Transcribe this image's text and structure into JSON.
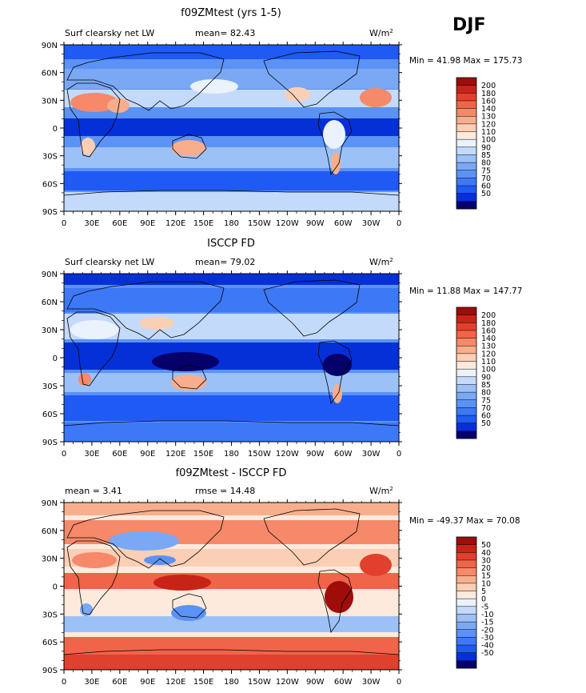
{
  "season": "DJF",
  "colors": {
    "abs_scale": [
      "#05006a",
      "#0530d8",
      "#1f5af5",
      "#3d78f7",
      "#5b92f5",
      "#7aa8f5",
      "#9cc1f7",
      "#c4dafa",
      "#eaf2fd",
      "#fdeadc",
      "#fbcfb5",
      "#f8ae8d",
      "#f5896a",
      "#f06449",
      "#e2402e",
      "#c82317",
      "#9e0d0a"
    ],
    "diff_scale": [
      "#05006a",
      "#0530d8",
      "#1f5af5",
      "#3d78f7",
      "#5b92f5",
      "#7aa8f5",
      "#9cc1f7",
      "#c4dafa",
      "#eaf2fd",
      "#fdeadc",
      "#fbcfb5",
      "#f8ae8d",
      "#f5896a",
      "#f06449",
      "#e2402e",
      "#c82317",
      "#9e0d0a"
    ]
  },
  "chart_data": [
    {
      "type": "heatmap",
      "title": "f09ZMtest (yrs 1-5)",
      "left_label": "Surf clearsky net LW",
      "center_label": "mean=   82.43",
      "units_label": "W/m",
      "units_sup": "2",
      "minmax": "Min =   41.98 Max =  175.73",
      "x_ticks": [
        "0",
        "30E",
        "60E",
        "90E",
        "120E",
        "150E",
        "180",
        "150W",
        "120W",
        "90W",
        "60W",
        "30W",
        "0"
      ],
      "y_ticks": [
        "90N",
        "60N",
        "30N",
        "0",
        "30S",
        "60S",
        "90S"
      ],
      "colorbar_levels": [
        "200",
        "180",
        "160",
        "140",
        "130",
        "120",
        "110",
        "100",
        "90",
        "85",
        "80",
        "75",
        "70",
        "60",
        "50"
      ],
      "xlim": [
        0,
        360
      ],
      "ylim": [
        -90,
        90
      ]
    },
    {
      "type": "heatmap",
      "title": "ISCCP FD",
      "left_label": "Surf clearsky net LW",
      "center_label": "mean=   79.02",
      "units_label": "W/m",
      "units_sup": "2",
      "minmax": "Min =   11.88 Max =  147.77",
      "x_ticks": [
        "0",
        "30E",
        "60E",
        "90E",
        "120E",
        "150E",
        "180",
        "150W",
        "120W",
        "90W",
        "60W",
        "30W",
        "0"
      ],
      "y_ticks": [
        "90N",
        "60N",
        "30N",
        "0",
        "30S",
        "60S",
        "90S"
      ],
      "colorbar_levels": [
        "200",
        "180",
        "160",
        "140",
        "130",
        "120",
        "110",
        "100",
        "90",
        "85",
        "80",
        "75",
        "70",
        "60",
        "50"
      ],
      "xlim": [
        0,
        360
      ],
      "ylim": [
        -90,
        90
      ]
    },
    {
      "type": "heatmap",
      "title": "f09ZMtest - ISCCP FD",
      "left_label": "mean =     3.41",
      "center_label": "rmse =   14.48",
      "units_label": "W/m",
      "units_sup": "2",
      "minmax": "Min = -49.37 Max =   70.08",
      "x_ticks": [
        "0",
        "30E",
        "60E",
        "90E",
        "120E",
        "150E",
        "180",
        "150W",
        "120W",
        "90W",
        "60W",
        "30W",
        "0"
      ],
      "y_ticks": [
        "90N",
        "60N",
        "30N",
        "0",
        "30S",
        "60S",
        "90S"
      ],
      "colorbar_levels": [
        "50",
        "40",
        "30",
        "20",
        "15",
        "10",
        "5",
        "0",
        "-5",
        "-10",
        "-15",
        "-20",
        "-30",
        "-40",
        "-50"
      ],
      "xlim": [
        0,
        360
      ],
      "ylim": [
        -90,
        90
      ]
    }
  ]
}
